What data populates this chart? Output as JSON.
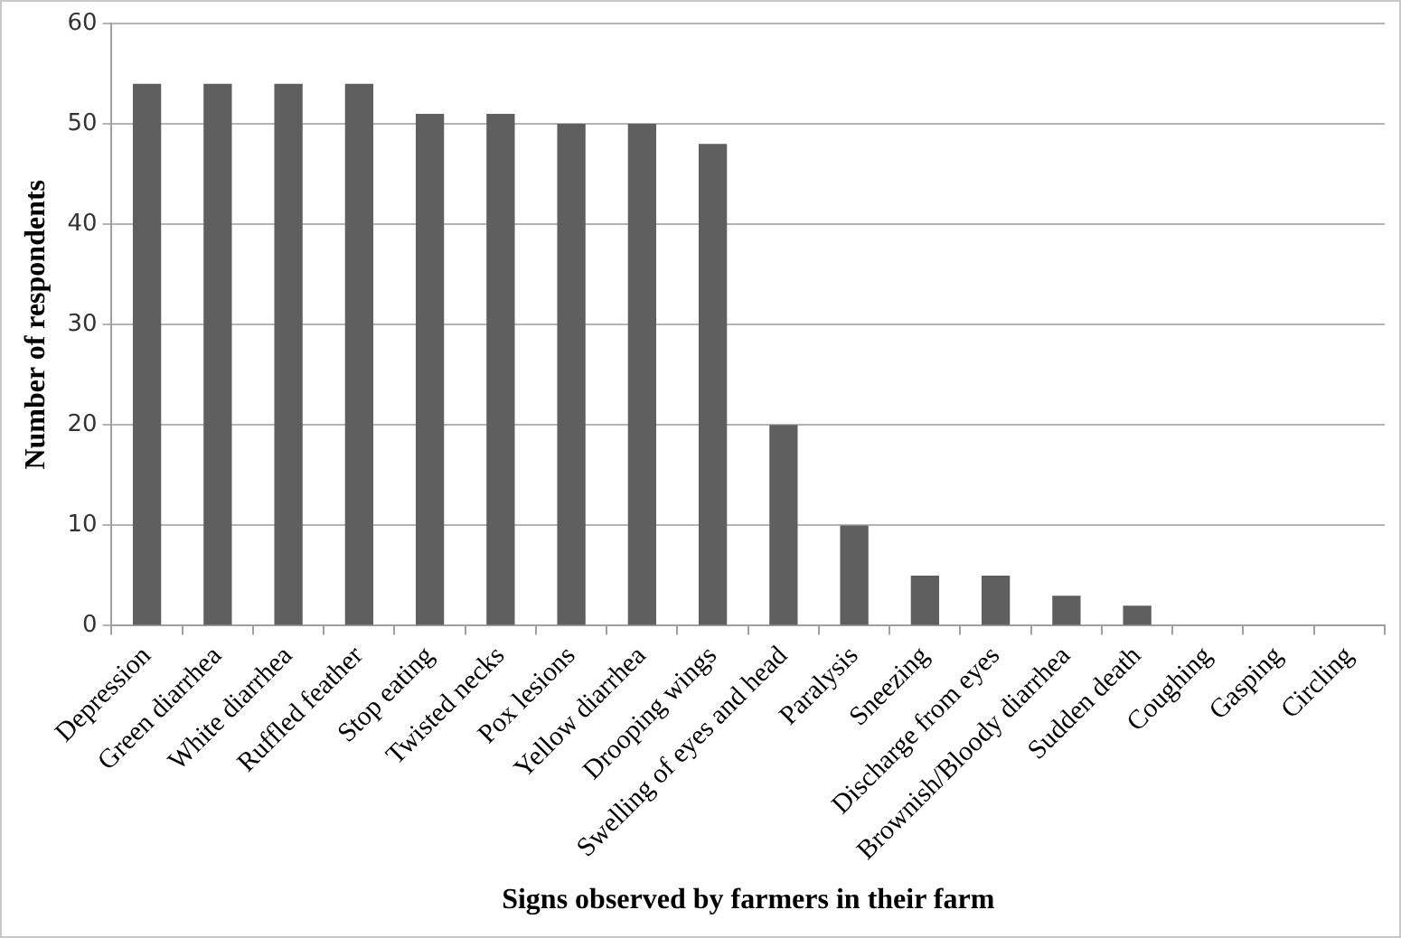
{
  "chart_data": {
    "type": "bar",
    "xlabel": "Signs observed by farmers in their farm",
    "ylabel": "Number of respondents",
    "categories": [
      "Depression",
      "Green diarrhea",
      "White diarrhea",
      "Ruffled feather",
      "Stop eating",
      "Twisted necks",
      "Pox lesions",
      "Yellow diarrhea",
      "Drooping wings",
      "Swelling of eyes and head",
      "Paralysis",
      "Sneezing",
      "Discharge from eyes",
      "Brownish/Bloody diarrhea",
      "Sudden death",
      "Coughing",
      "Gasping",
      "Circling"
    ],
    "values": [
      54,
      54,
      54,
      54,
      51,
      51,
      50,
      50,
      48,
      20,
      10,
      5,
      5,
      3,
      2,
      0,
      0,
      0
    ],
    "color": "#5f5f5f",
    "ylim": [
      0,
      60
    ],
    "yticks": [
      0,
      10,
      20,
      30,
      40,
      50,
      60
    ],
    "grid": "y",
    "legend": false
  }
}
